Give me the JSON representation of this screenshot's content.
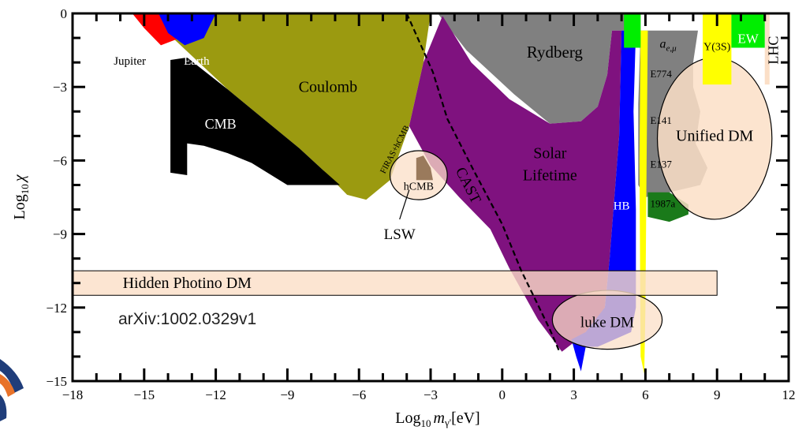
{
  "chart_data": {
    "type": "area",
    "xlabel_base": "Log",
    "xlabel_sub": "10",
    "xlabel_var": "m",
    "xlabel_varsub": "γ'",
    "xlabel_unit": "[eV]",
    "ylabel_base": "Log",
    "ylabel_sub": "10",
    "ylabel_var": "χ",
    "xlim": [
      -18,
      12
    ],
    "ylim": [
      -15,
      0
    ],
    "xticks": [
      "−18",
      "−15",
      "−12",
      "−9",
      "−6",
      "−3",
      "0",
      "3",
      "6",
      "9",
      "12"
    ],
    "yticks": [
      "0",
      "−3",
      "−6",
      "−9",
      "−12",
      "−15"
    ],
    "annotation": "arXiv:1002.0329v1",
    "regions": [
      {
        "key": "coulomb",
        "label": "Coulomb",
        "color": "#9b9a10",
        "poly": [
          [
            -13,
            0
          ],
          [
            -3,
            0
          ],
          [
            -3.3,
            -2
          ],
          [
            -3.9,
            -4.6
          ],
          [
            -4.7,
            -6.8
          ],
          [
            -5.7,
            -7.6
          ],
          [
            -6.5,
            -7.4
          ],
          [
            -7.5,
            -6.4
          ],
          [
            -8.5,
            -5.5
          ],
          [
            -10,
            -4.3
          ],
          [
            -11.5,
            -3.1
          ],
          [
            -13.8,
            -1
          ]
        ]
      },
      {
        "key": "cmb",
        "label": "CMB",
        "color": "#000000",
        "poly": [
          [
            -13.9,
            -1.9
          ],
          [
            -13.2,
            -1.8
          ],
          [
            -11.5,
            -3.1
          ],
          [
            -10,
            -4.3
          ],
          [
            -8.5,
            -5.5
          ],
          [
            -7.5,
            -6.4
          ],
          [
            -6.8,
            -7
          ],
          [
            -9,
            -7
          ],
          [
            -10.5,
            -6.1
          ],
          [
            -11.5,
            -5.7
          ],
          [
            -12.5,
            -5.4
          ],
          [
            -13.2,
            -5.3
          ],
          [
            -13.2,
            -6.6
          ],
          [
            -13.9,
            -6.5
          ]
        ]
      },
      {
        "key": "rydberg",
        "label": "Rydberg",
        "color": "#808080",
        "poly": [
          [
            -2.7,
            0
          ],
          [
            5.8,
            0
          ],
          [
            5.8,
            -0.7
          ],
          [
            4.6,
            -0.7
          ],
          [
            4.4,
            -2.5
          ],
          [
            4,
            -3.8
          ],
          [
            3.3,
            -4.4
          ],
          [
            2,
            -4.5
          ],
          [
            0.5,
            -3.3
          ],
          [
            -1.5,
            -1.5
          ]
        ]
      },
      {
        "key": "solar",
        "label": "Solar Lifetime",
        "color": "#7f127f",
        "poly": [
          [
            -2.5,
            -0.1
          ],
          [
            -1.3,
            -2
          ],
          [
            0.3,
            -3.5
          ],
          [
            2,
            -4.5
          ],
          [
            3.3,
            -4.4
          ],
          [
            4,
            -3.8
          ],
          [
            4.4,
            -2.5
          ],
          [
            4.6,
            -0.7
          ],
          [
            5,
            -0.7
          ],
          [
            4.9,
            -5
          ],
          [
            4.5,
            -10
          ],
          [
            4.3,
            -12
          ],
          [
            3.9,
            -12.6
          ],
          [
            3.3,
            -13.2
          ],
          [
            2.9,
            -13.5
          ],
          [
            2.5,
            -13.8
          ],
          [
            1.5,
            -12.5
          ],
          [
            0.3,
            -10.4
          ],
          [
            -0.5,
            -8.8
          ],
          [
            -1.8,
            -7.5
          ],
          [
            -3,
            -6.2
          ],
          [
            -3.9,
            -4.6
          ],
          [
            -3.3,
            -2
          ]
        ]
      },
      {
        "key": "hb",
        "label": "HB",
        "color": "#0000ff",
        "poly": [
          [
            5,
            -0.7
          ],
          [
            5.6,
            -0.7
          ],
          [
            5.5,
            -4
          ],
          [
            5.6,
            -8
          ],
          [
            5.6,
            -12
          ],
          [
            5.4,
            -13
          ],
          [
            4,
            -13.6
          ],
          [
            3.5,
            -13.6
          ],
          [
            3.3,
            -14.6
          ],
          [
            3.1,
            -14
          ],
          [
            2.9,
            -13.3
          ],
          [
            3.5,
            -13
          ],
          [
            4.3,
            -12
          ],
          [
            4.5,
            -10
          ],
          [
            4.9,
            -5
          ]
        ]
      },
      {
        "key": "y3s",
        "label": "Y(3S)",
        "color": "#ffff00",
        "label_fill": "#000000",
        "poly": [
          [
            8.4,
            0
          ],
          [
            9.6,
            0
          ],
          [
            9.6,
            -2.9
          ],
          [
            8.4,
            -2.9
          ]
        ]
      },
      {
        "key": "ew",
        "label": "EW",
        "color": "#00ee00",
        "label_fill": "#ffffff",
        "poly": [
          [
            9.6,
            0
          ],
          [
            11,
            0
          ],
          [
            11,
            -1.4
          ],
          [
            9.6,
            -1.4
          ]
        ]
      },
      {
        "key": "green_top",
        "label": "",
        "color": "#00ee00",
        "poly": [
          [
            5.1,
            0
          ],
          [
            5.8,
            0
          ],
          [
            5.8,
            -1.4
          ],
          [
            5.1,
            -1.4
          ]
        ]
      },
      {
        "key": "ae",
        "label": "a_e,μ",
        "color": "#808080",
        "poly": [
          [
            5.8,
            -0.7
          ],
          [
            8.2,
            -0.7
          ],
          [
            8,
            -2
          ],
          [
            8,
            -3
          ],
          [
            7.6,
            -3.6
          ],
          [
            6.9,
            -3.5
          ],
          [
            6.1,
            -3.6
          ],
          [
            5.7,
            -3.7
          ]
        ]
      },
      {
        "key": "beamdump",
        "label": "E774 E141 E137",
        "color": "#808080",
        "poly": [
          [
            5.7,
            -3.7
          ],
          [
            7.3,
            -2.4
          ],
          [
            8,
            -3
          ],
          [
            8.3,
            -4
          ],
          [
            8.1,
            -5.3
          ],
          [
            8.6,
            -6.3
          ],
          [
            8.3,
            -7
          ],
          [
            7,
            -7.3
          ],
          [
            6,
            -7.5
          ],
          [
            5.7,
            -7
          ]
        ]
      },
      {
        "key": "sn1987a",
        "label": "1987a",
        "color": "#1a7a1a",
        "poly": [
          [
            6.1,
            -7.3
          ],
          [
            7,
            -7.3
          ],
          [
            7.8,
            -7.8
          ],
          [
            7.8,
            -8.2
          ],
          [
            7,
            -8.5
          ],
          [
            6.1,
            -8.3
          ]
        ]
      },
      {
        "key": "lhc",
        "label": "LHC",
        "color": "#fbdfc7",
        "poly": [
          [
            11,
            0
          ],
          [
            11.2,
            0
          ],
          [
            11.2,
            -2.9
          ],
          [
            11,
            -2.9
          ]
        ]
      },
      {
        "key": "jupiter",
        "label": "Jupiter",
        "color": "#ff0000",
        "poly": [
          [
            -15.5,
            0
          ],
          [
            -13.2,
            0
          ],
          [
            -13.5,
            -1
          ],
          [
            -14.3,
            -1.3
          ],
          [
            -15,
            -0.6
          ]
        ]
      },
      {
        "key": "earth",
        "label": "Earth",
        "color": "#0000ff",
        "poly": [
          [
            -14.4,
            0
          ],
          [
            -12,
            0
          ],
          [
            -12.5,
            -1
          ],
          [
            -13.3,
            -1.3
          ],
          [
            -14,
            -0.8
          ]
        ]
      }
    ],
    "hb_yellow": {
      "color": "#ffff00",
      "poly": [
        [
          5.8,
          -0.7
        ],
        [
          6.1,
          -0.7
        ],
        [
          6.05,
          -6
        ],
        [
          6.0,
          -12
        ],
        [
          5.95,
          -14.7
        ],
        [
          5.8,
          -14
        ],
        [
          5.75,
          -6
        ]
      ]
    },
    "bands": [
      {
        "key": "hidden_photino",
        "label": "Hidden Photino DM",
        "color": "#fbdfc7",
        "x": [
          -18,
          9
        ],
        "y": [
          -10.5,
          -11.5
        ]
      }
    ],
    "ellipses": [
      {
        "key": "hcmb_ellipse",
        "label": "hCMB",
        "color": "#fbdfc7",
        "cx": -3.5,
        "cy": -6.6,
        "rx": 1.2,
        "ry": 1.0
      },
      {
        "key": "unified_dm",
        "label": "Unified DM",
        "color": "#fbdfc7",
        "cx": 8.9,
        "cy": -5.1,
        "rx": 2.4,
        "ry": 3.3
      },
      {
        "key": "luke_dm",
        "label": "luke DM",
        "color": "#fbdfc7",
        "cx": 4.4,
        "cy": -12.5,
        "rx": 2.3,
        "ry": 1.2
      }
    ],
    "cast_line": [
      [
        -4,
        0
      ],
      [
        -2.9,
        -2.4
      ],
      [
        -2.3,
        -4.3
      ],
      [
        -1.2,
        -6.4
      ],
      [
        0,
        -8.6
      ],
      [
        0.8,
        -10.5
      ],
      [
        1.4,
        -11.7
      ],
      [
        2,
        -12.9
      ],
      [
        2.4,
        -13.8
      ]
    ],
    "lsw_pointer": [
      [
        -4.3,
        -8.4
      ],
      [
        -3.9,
        -7.2
      ]
    ],
    "labels": {
      "jupiter": "Jupiter",
      "earth": "Earth",
      "coulomb": "Coulomb",
      "cmb": "CMB",
      "rydberg": "Rydberg",
      "solar1": "Solar",
      "solar2": "Lifetime",
      "cast": "CAST",
      "firas": "FIRAS+hCMB",
      "hcmb": "hCMB",
      "lsw": "LSW",
      "hb": "HB",
      "ae": "a",
      "ae_sub": "e,μ",
      "y3s": "Y(3S)",
      "ew": "EW",
      "lhc": "LHC",
      "e774": "E774",
      "e141": "E141",
      "e137": "E137",
      "sn1987a": "1987a",
      "unified": "Unified DM",
      "luke": "luke DM",
      "hidden": "Hidden Photino DM"
    }
  }
}
